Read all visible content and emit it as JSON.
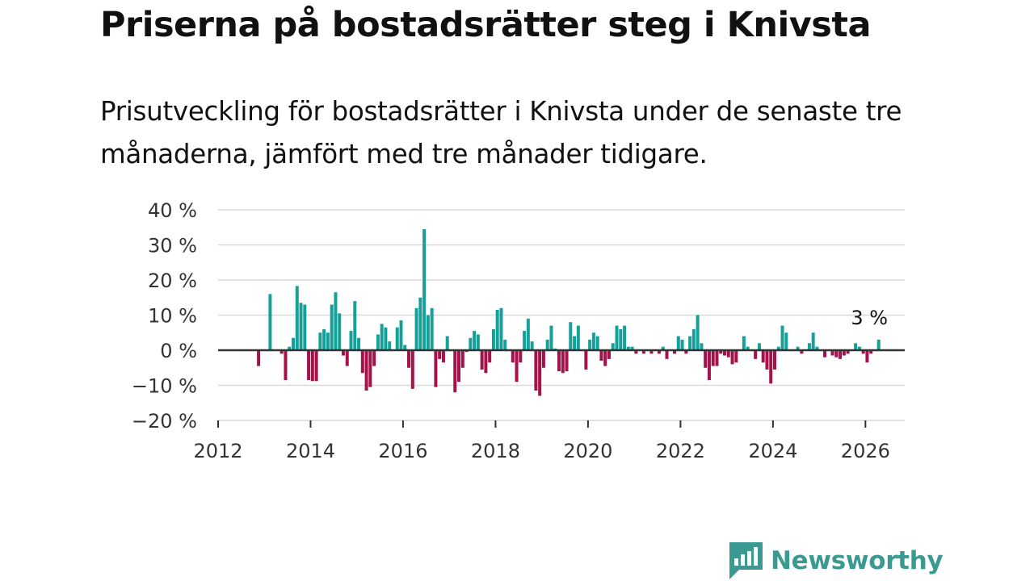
{
  "header": {
    "title": "Priserna på bostadsrätter steg i Knivsta",
    "subtitle": "Prisutveckling för bostadsrätter i Knivsta under de senaste tre månaderna, jämfört med tre månader tidigare."
  },
  "brand": {
    "name": "Newsworthy"
  },
  "colors": {
    "positive": "#15a199",
    "negative": "#a3124b",
    "grid": "#d9d9d9",
    "zero": "#333333",
    "brand": "#3a9a92"
  },
  "chart_data": {
    "type": "bar",
    "title": "Priserna på bostadsrätter steg i Knivsta",
    "ylabel": "",
    "xlabel": "",
    "ylim": [
      -20,
      40
    ],
    "xlim": [
      2012,
      2026.85
    ],
    "yticks": [
      40,
      30,
      20,
      10,
      0,
      -10,
      -20
    ],
    "ytick_labels": [
      "40 %",
      "30 %",
      "20 %",
      "10 %",
      "0 %",
      "−10 %",
      "−20 %"
    ],
    "xticks": [
      "2012",
      "2014",
      "2016",
      "2018",
      "2020",
      "2022",
      "2024",
      "2026"
    ],
    "annotation": {
      "text": "3 %",
      "x": 2026.12,
      "y": 3
    },
    "start_year": 2012.875,
    "step": 0.0833,
    "values": [
      -4.5,
      0,
      0,
      16,
      0,
      0,
      -1,
      -8.5,
      1,
      3.5,
      18.3,
      13.5,
      13,
      -8.5,
      -8.8,
      -8.8,
      5,
      6,
      5,
      13,
      16.5,
      10.5,
      -1.5,
      -4.5,
      5.5,
      14,
      3.5,
      -6.5,
      -11.5,
      -10.5,
      -4.5,
      4.5,
      7.5,
      6.5,
      2.5,
      0,
      6.5,
      8.5,
      1.5,
      -5,
      -11,
      12,
      15,
      34.5,
      10,
      12,
      -10.5,
      -2.5,
      -3.5,
      4,
      0,
      -12,
      -9,
      -5,
      -0.5,
      3.5,
      5.5,
      4.5,
      -5.5,
      -6.5,
      -3.5,
      6,
      11.5,
      12,
      3,
      0,
      -3.5,
      -9,
      -3.5,
      5.5,
      9,
      2.5,
      -11.5,
      -13,
      -5,
      3,
      7,
      0.5,
      -6,
      -6.5,
      -6,
      8,
      4,
      7,
      0,
      -5.5,
      3,
      5,
      4,
      -3,
      -4.5,
      -2.5,
      2,
      7,
      6,
      7,
      1,
      1,
      -1,
      0,
      -1,
      0,
      -1,
      0,
      -1,
      1,
      -2.5,
      0,
      -1,
      4,
      3,
      -1,
      4,
      6,
      10,
      2,
      -5,
      -8.5,
      -4.5,
      -4.5,
      -1,
      -1.5,
      -2,
      -4,
      -3.5,
      0,
      4,
      1,
      0,
      -2.5,
      2,
      -3.5,
      -5.5,
      -9.5,
      -5.5,
      1,
      7,
      5,
      0,
      0,
      1,
      -1,
      0,
      2,
      5,
      1,
      0,
      -2,
      0,
      -1.5,
      -2,
      -2.5,
      -1.5,
      -1,
      0,
      2,
      1,
      -1,
      -3.5,
      -1,
      0,
      3
    ]
  }
}
